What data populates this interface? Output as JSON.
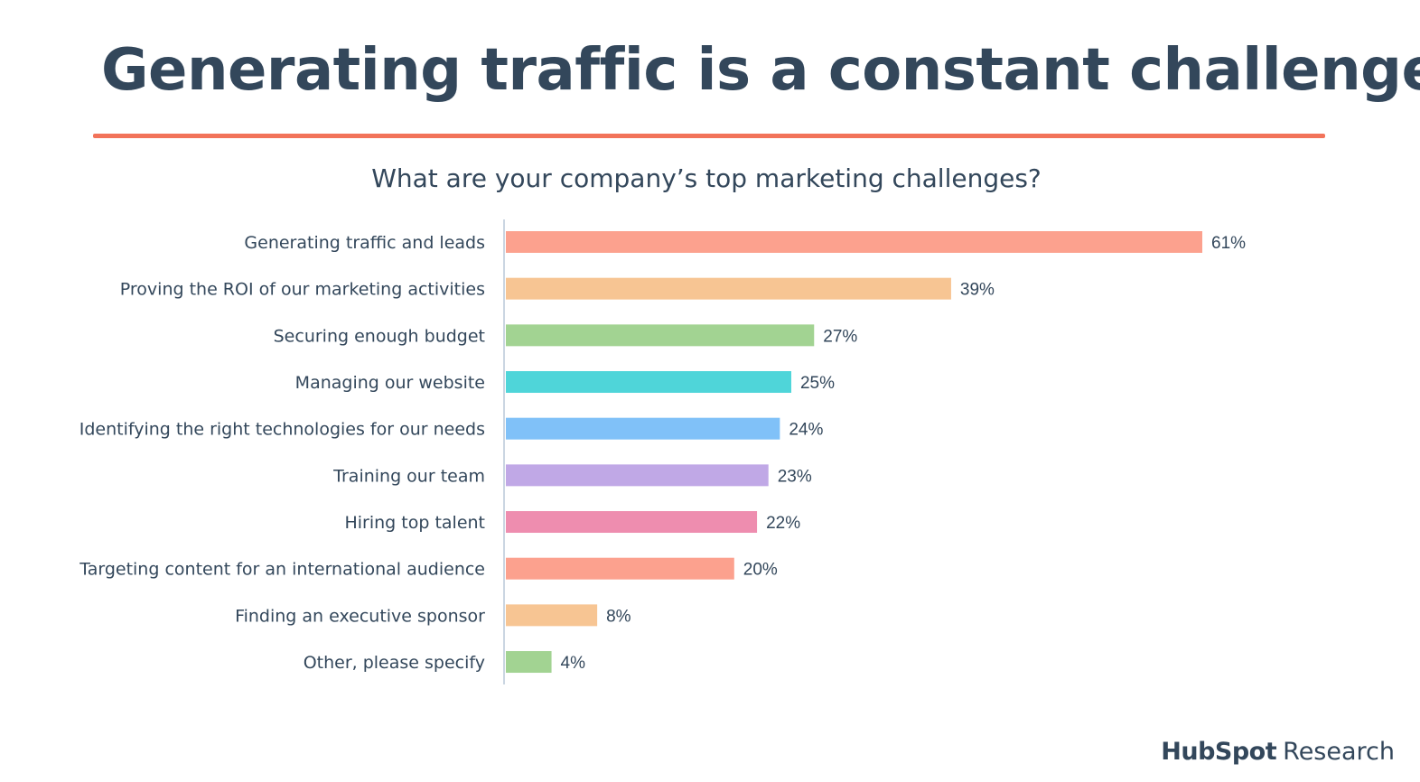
{
  "slide": {
    "title": "Generating traffic is a constant challenge",
    "accent_color": "#f2735a",
    "logo_brand": "HubSpot",
    "logo_suffix": "Research"
  },
  "chart_data": {
    "type": "bar",
    "orientation": "horizontal",
    "title": "What are your company’s top marketing challenges?",
    "xlabel": "",
    "ylabel": "",
    "xlim": [
      0,
      100
    ],
    "unit": "%",
    "grid": false,
    "categories": [
      "Generating traffic and leads",
      "Proving the ROI of our marketing activities",
      "Securing enough budget",
      "Managing our website",
      "Identifying the right technologies for our needs",
      "Training our team",
      "Hiring top talent",
      "Targeting content for an international audience",
      "Finding an executive sponsor",
      "Other, please specify"
    ],
    "values": [
      61,
      39,
      27,
      25,
      24,
      23,
      22,
      20,
      8,
      4
    ],
    "data_labels": [
      "61%",
      "39%",
      "27%",
      "25%",
      "24%",
      "23%",
      "22%",
      "20%",
      "8%",
      "4%"
    ],
    "bar_colors": [
      "#fca18e",
      "#f7c593",
      "#a2d392",
      "#4fd5d9",
      "#80c1f8",
      "#c0a8e6",
      "#ee8daf",
      "#fca18e",
      "#f7c593",
      "#a2d392"
    ],
    "axis_color": "#cbd6e2"
  }
}
